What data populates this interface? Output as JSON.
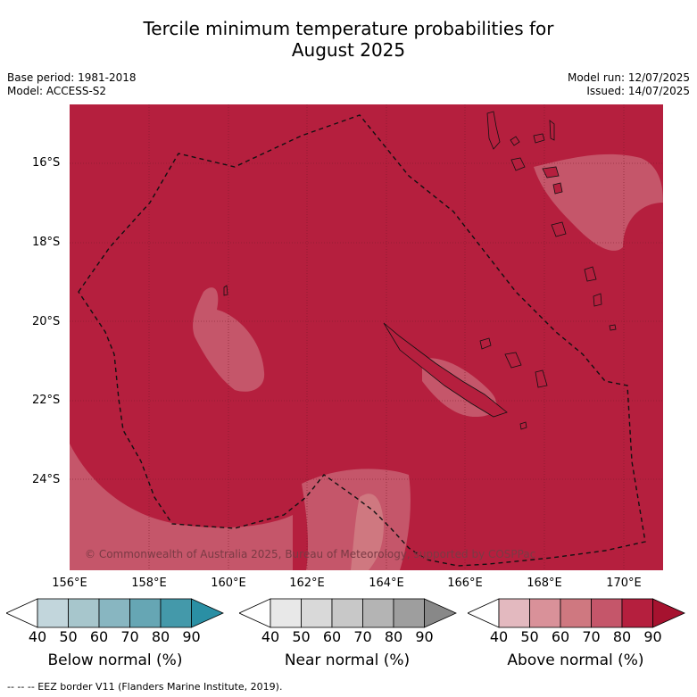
{
  "title_line1": "Tercile minimum temperature probabilities for",
  "title_line2": "August 2025",
  "meta_left": [
    "Base period: 1981-2018",
    "Model: ACCESS-S2"
  ],
  "meta_right": [
    "Model run: 12/07/2025",
    "Issued: 14/07/2025"
  ],
  "lat_labels": [
    "16°S",
    "18°S",
    "20°S",
    "22°S",
    "24°S"
  ],
  "lon_labels": [
    "156°E",
    "158°E",
    "160°E",
    "162°E",
    "164°E",
    "166°E",
    "168°E",
    "170°E"
  ],
  "credit": "© Commonwealth of Australia 2025, Bureau of Meteorology, supported by COSPPac",
  "colorbars": [
    {
      "label": "Below normal (%)",
      "ticks": [
        "40",
        "50",
        "60",
        "70",
        "80",
        "90"
      ],
      "colors": [
        "#ffffff",
        "#c2d6dc",
        "#a7c6cc",
        "#88b6c1",
        "#66a6b4",
        "#4499aa",
        "#2a8fa4"
      ]
    },
    {
      "label": "Near normal (%)",
      "ticks": [
        "40",
        "50",
        "60",
        "70",
        "80",
        "90"
      ],
      "colors": [
        "#ffffff",
        "#e8e8e8",
        "#d9d9d9",
        "#c8c8c8",
        "#b4b4b4",
        "#9e9e9e",
        "#888888"
      ]
    },
    {
      "label": "Above normal (%)",
      "ticks": [
        "40",
        "50",
        "60",
        "70",
        "80",
        "90"
      ],
      "colors": [
        "#ffffff",
        "#e3b9bf",
        "#d99199",
        "#cf7880",
        "#c5566a",
        "#b51f3e",
        "#a6122f"
      ]
    }
  ],
  "footer": "--  --  -- EEZ border V11 (Flanders Marine Institute, 2019).",
  "map_colors": {
    "dominant": "#b51f3e",
    "lighter": "#c5566a",
    "lightest": "#cf7880"
  }
}
